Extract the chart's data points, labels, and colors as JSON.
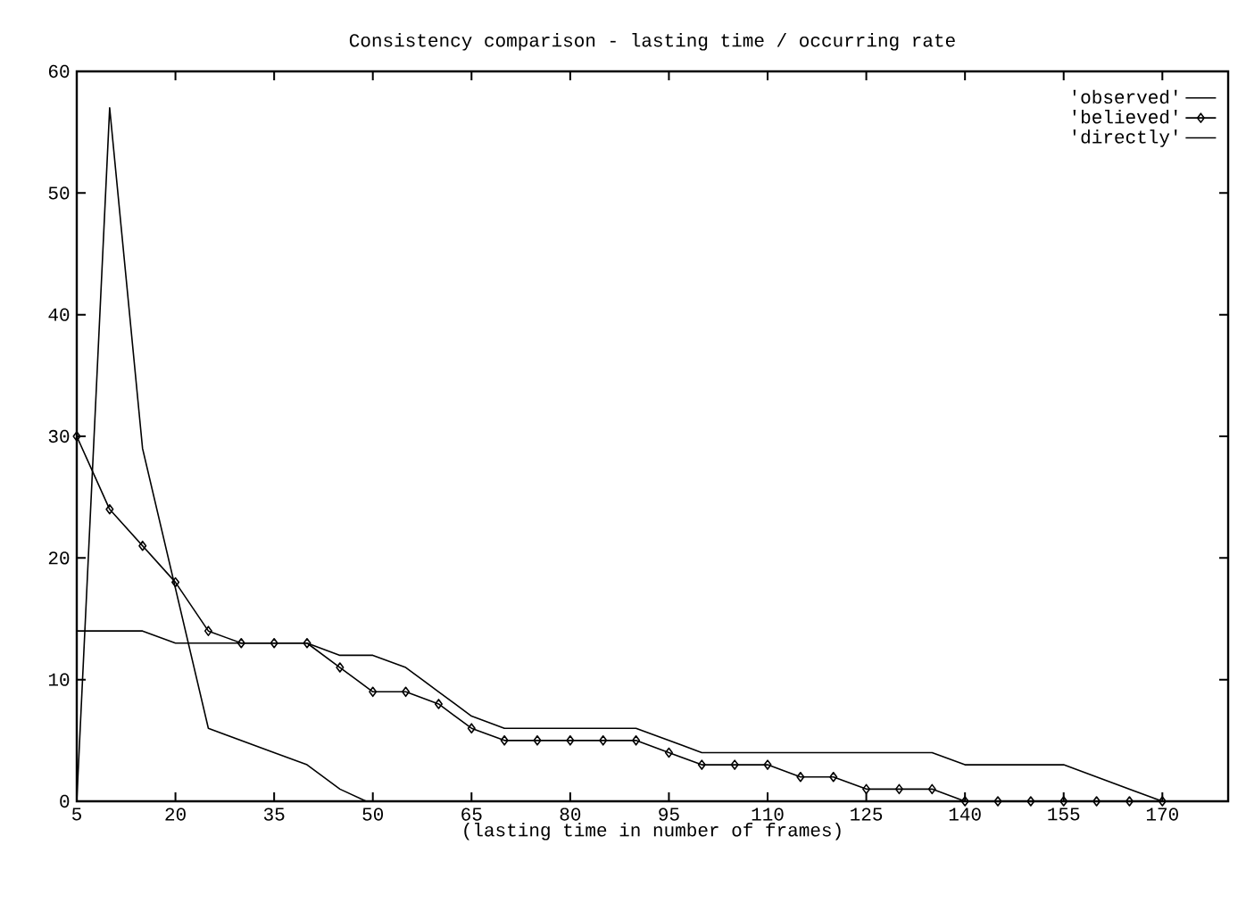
{
  "chart_data": {
    "type": "line",
    "title": "Consistency comparison - lasting time / occurring rate",
    "xlabel": "(lasting time in number of frames)",
    "xlim": [
      5,
      180
    ],
    "ylim": [
      0,
      60
    ],
    "xticks": [
      5,
      20,
      35,
      50,
      65,
      80,
      95,
      110,
      125,
      140,
      155,
      170
    ],
    "yticks": [
      0,
      10,
      20,
      30,
      40,
      50,
      60
    ],
    "grid": false,
    "legend": "top right",
    "line_style": "solid",
    "series": [
      {
        "name": "'observed'",
        "color": "#000000",
        "marker": "none",
        "x": [
          5,
          10,
          15,
          25,
          30,
          35,
          40,
          45,
          49
        ],
        "values": [
          0,
          57,
          29,
          6,
          5,
          4,
          3,
          1,
          0
        ]
      },
      {
        "name": "'believed'",
        "color": "#000000",
        "marker": "diamond",
        "x": [
          5,
          10,
          15,
          20,
          25,
          30,
          35,
          40,
          45,
          50,
          55,
          60,
          65,
          70,
          75,
          80,
          85,
          90,
          95,
          100,
          105,
          110,
          115,
          120,
          125,
          130,
          135,
          140,
          145,
          150,
          155,
          160,
          165,
          170
        ],
        "values": [
          30,
          24,
          21,
          18,
          14,
          13,
          13,
          13,
          11,
          9,
          9,
          8,
          6,
          5,
          5,
          5,
          5,
          5,
          4,
          3,
          3,
          3,
          2,
          2,
          1,
          1,
          1,
          0,
          0,
          0,
          0,
          0,
          0,
          0
        ]
      },
      {
        "name": "'directly'",
        "color": "#000000",
        "marker": "none",
        "x": [
          5,
          15,
          20,
          40,
          45,
          50,
          55,
          60,
          65,
          70,
          90,
          100,
          135,
          140,
          155,
          170
        ],
        "values": [
          14,
          14,
          13,
          13,
          12,
          12,
          11,
          9,
          7,
          6,
          6,
          4,
          4,
          3,
          3,
          0
        ]
      }
    ]
  }
}
